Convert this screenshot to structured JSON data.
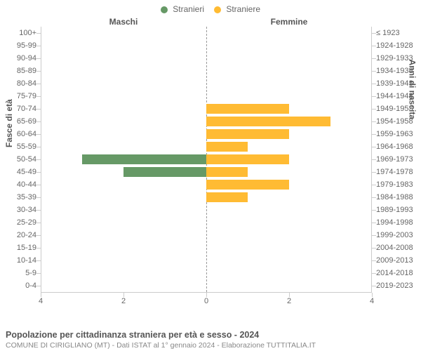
{
  "legend": [
    {
      "label": "Stranieri",
      "color": "#669966"
    },
    {
      "label": "Straniere",
      "color": "#ffbb33"
    }
  ],
  "headers": {
    "left": "Maschi",
    "right": "Femmine"
  },
  "axis_titles": {
    "left": "Fasce di età",
    "right": "Anni di nascita"
  },
  "x_ticks": [
    4,
    2,
    0,
    2,
    4
  ],
  "x_max": 4,
  "colors": {
    "male": "#669966",
    "female": "#ffbb33",
    "grid": "#cccccc",
    "center": "#999999",
    "bg": "#ffffff"
  },
  "rows": [
    {
      "age": "100+",
      "birth": "≤ 1923",
      "m": 0,
      "f": 0
    },
    {
      "age": "95-99",
      "birth": "1924-1928",
      "m": 0,
      "f": 0
    },
    {
      "age": "90-94",
      "birth": "1929-1933",
      "m": 0,
      "f": 0
    },
    {
      "age": "85-89",
      "birth": "1934-1938",
      "m": 0,
      "f": 0
    },
    {
      "age": "80-84",
      "birth": "1939-1943",
      "m": 0,
      "f": 0
    },
    {
      "age": "75-79",
      "birth": "1944-1948",
      "m": 0,
      "f": 0
    },
    {
      "age": "70-74",
      "birth": "1949-1953",
      "m": 0,
      "f": 2
    },
    {
      "age": "65-69",
      "birth": "1954-1958",
      "m": 0,
      "f": 3
    },
    {
      "age": "60-64",
      "birth": "1959-1963",
      "m": 0,
      "f": 2
    },
    {
      "age": "55-59",
      "birth": "1964-1968",
      "m": 0,
      "f": 1
    },
    {
      "age": "50-54",
      "birth": "1969-1973",
      "m": 3,
      "f": 2
    },
    {
      "age": "45-49",
      "birth": "1974-1978",
      "m": 2,
      "f": 1
    },
    {
      "age": "40-44",
      "birth": "1979-1983",
      "m": 0,
      "f": 2
    },
    {
      "age": "35-39",
      "birth": "1984-1988",
      "m": 0,
      "f": 1
    },
    {
      "age": "30-34",
      "birth": "1989-1993",
      "m": 0,
      "f": 0
    },
    {
      "age": "25-29",
      "birth": "1994-1998",
      "m": 0,
      "f": 0
    },
    {
      "age": "20-24",
      "birth": "1999-2003",
      "m": 0,
      "f": 0
    },
    {
      "age": "15-19",
      "birth": "2004-2008",
      "m": 0,
      "f": 0
    },
    {
      "age": "10-14",
      "birth": "2009-2013",
      "m": 0,
      "f": 0
    },
    {
      "age": "5-9",
      "birth": "2014-2018",
      "m": 0,
      "f": 0
    },
    {
      "age": "0-4",
      "birth": "2019-2023",
      "m": 0,
      "f": 0
    }
  ],
  "title": "Popolazione per cittadinanza straniera per età e sesso - 2024",
  "subtitle": "COMUNE DI CIRIGLIANO (MT) - Dati ISTAT al 1° gennaio 2024 - Elaborazione TUTTITALIA.IT"
}
